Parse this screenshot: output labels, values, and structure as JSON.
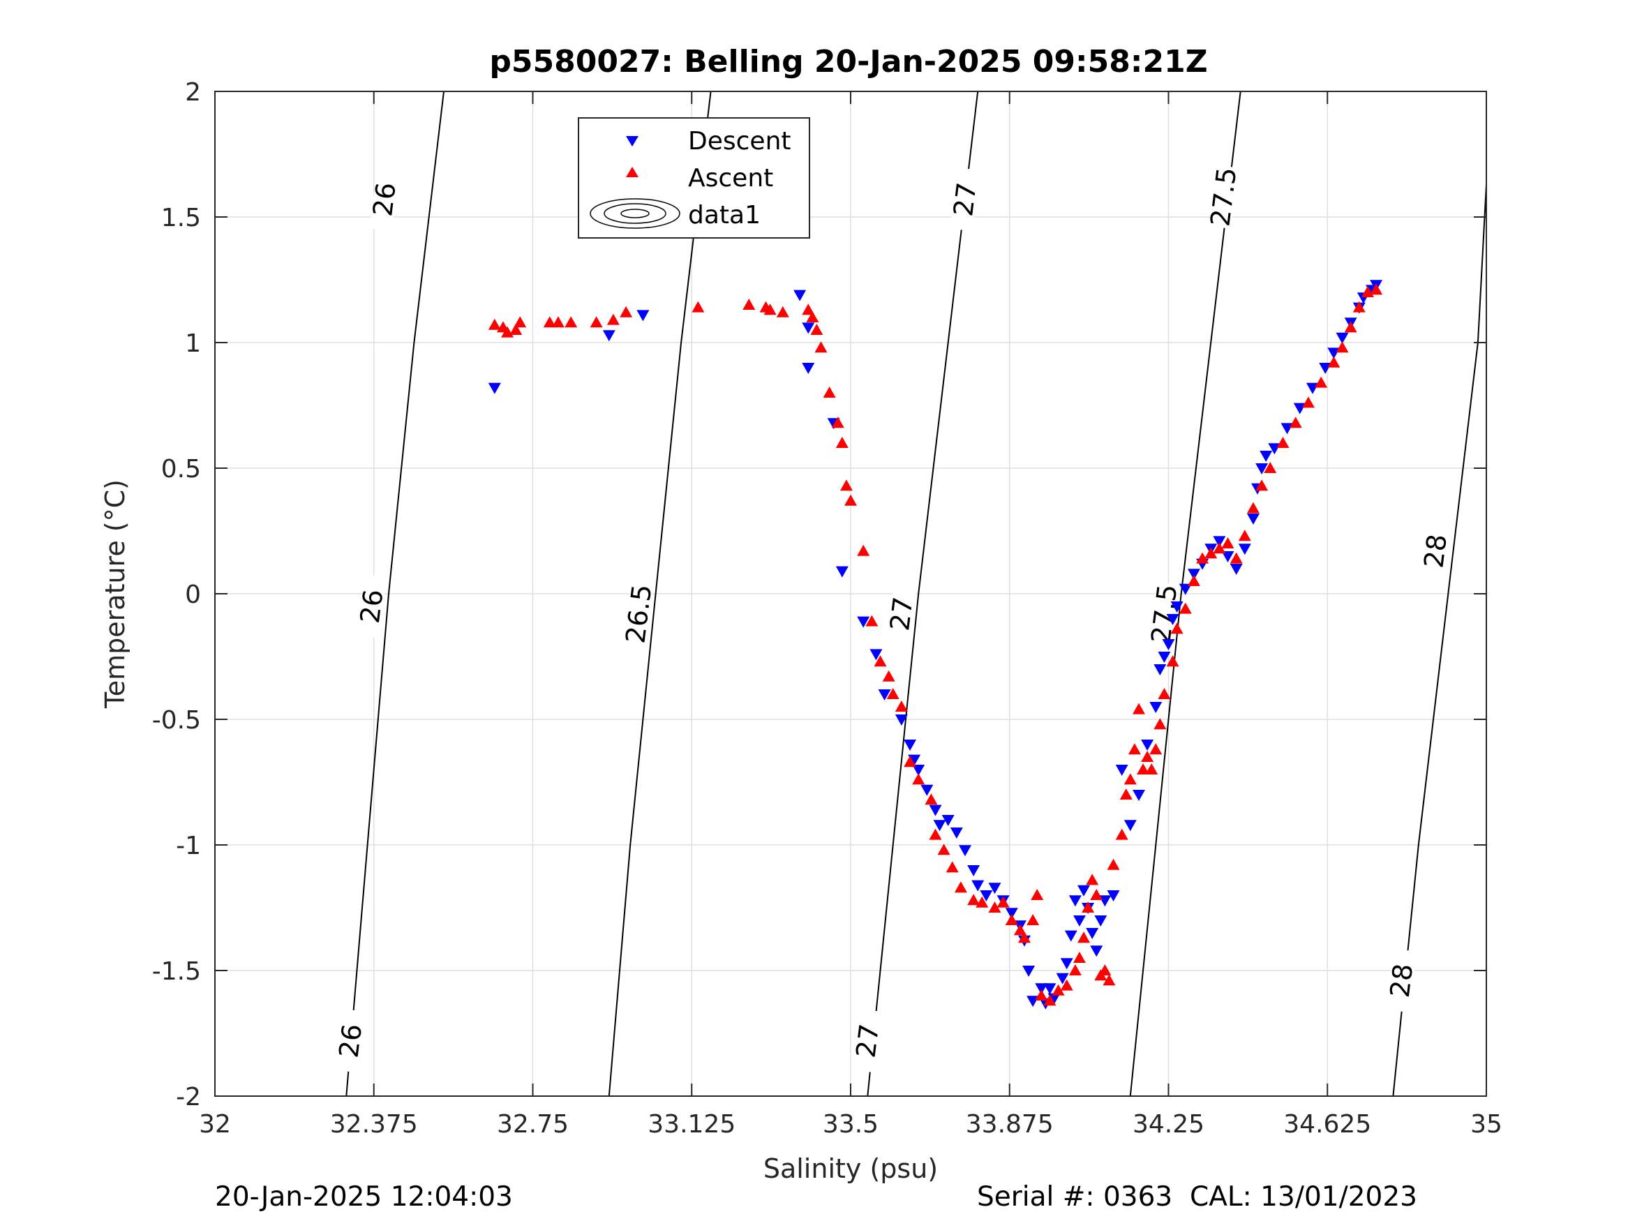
{
  "title": "p5580027: Belling 20-Jan-2025 09:58:21Z",
  "footer": {
    "timestamp": "20-Jan-2025 12:04:03",
    "serial": "Serial #: 0363  CAL: 13/01/2023"
  },
  "colors": {
    "descent": "#0000ff",
    "ascent": "#ff0000",
    "contour": "#000000",
    "grid": "#dfdfdf"
  },
  "chart_data": {
    "type": "scatter",
    "title": "p5580027: Belling 20-Jan-2025 09:58:21Z",
    "xlabel": "Salinity (psu)",
    "ylabel": "Temperature (°C)",
    "xlim": [
      32,
      35
    ],
    "ylim": [
      -2,
      2
    ],
    "xticks": [
      32,
      32.375,
      32.75,
      33.125,
      33.5,
      33.875,
      34.25,
      34.625,
      35
    ],
    "xtick_labels": [
      "32",
      "32.375",
      "32.75",
      "33.125",
      "33.5",
      "33.875",
      "34.25",
      "34.625",
      "35"
    ],
    "yticks": [
      -2,
      -1.5,
      -1,
      -0.5,
      0,
      0.5,
      1,
      1.5,
      2
    ],
    "ytick_labels": [
      "-2",
      "-1.5",
      "-1",
      "-0.5",
      "0",
      "0.5",
      "1",
      "1.5",
      "2"
    ],
    "grid": true,
    "legend": {
      "position": "top-center",
      "entries": [
        "Descent",
        "Ascent",
        "data1"
      ]
    },
    "contours": [
      {
        "level": "26",
        "points": [
          [
            32.31,
            -2
          ],
          [
            32.36,
            -1
          ],
          [
            32.41,
            0
          ],
          [
            32.47,
            1
          ],
          [
            32.54,
            2
          ]
        ]
      },
      {
        "level": "26.5",
        "points": [
          [
            32.93,
            -2
          ],
          [
            32.98,
            -1
          ],
          [
            33.04,
            0
          ],
          [
            33.1,
            1
          ],
          [
            33.17,
            2
          ]
        ]
      },
      {
        "level": "27",
        "points": [
          [
            33.54,
            -2
          ],
          [
            33.6,
            -1
          ],
          [
            33.66,
            0
          ],
          [
            33.73,
            1
          ],
          [
            33.8,
            2
          ]
        ]
      },
      {
        "level": "27.5",
        "points": [
          [
            34.16,
            -2
          ],
          [
            34.22,
            -1
          ],
          [
            34.28,
            0
          ],
          [
            34.35,
            1
          ],
          [
            34.42,
            2
          ]
        ]
      },
      {
        "level": "28",
        "points": [
          [
            34.78,
            -2
          ],
          [
            34.84,
            -1
          ],
          [
            34.91,
            0
          ],
          [
            34.98,
            1
          ],
          [
            35.0,
            1.63
          ]
        ]
      }
    ],
    "contour_labels": [
      {
        "text": "26",
        "s": 32.4,
        "t": 1.57
      },
      {
        "text": "26",
        "s": 32.37,
        "t": -0.05
      },
      {
        "text": "26",
        "s": 32.32,
        "t": -1.78
      },
      {
        "text": "26.5",
        "s": 33.11,
        "t": 1.58
      },
      {
        "text": "26.5",
        "s": 33.0,
        "t": -0.08
      },
      {
        "text": "27",
        "s": 33.77,
        "t": 1.57
      },
      {
        "text": "27",
        "s": 33.62,
        "t": -0.08
      },
      {
        "text": "27",
        "s": 33.54,
        "t": -1.78
      },
      {
        "text": "27.5",
        "s": 34.38,
        "t": 1.58
      },
      {
        "text": "27.5",
        "s": 34.24,
        "t": -0.08
      },
      {
        "text": "28",
        "s": 34.88,
        "t": 0.17
      },
      {
        "text": "28",
        "s": 34.8,
        "t": -1.54
      }
    ],
    "series": [
      {
        "name": "Descent",
        "marker": "triangle-down",
        "points": [
          [
            32.66,
            0.82
          ],
          [
            32.93,
            1.03
          ],
          [
            33.01,
            1.11
          ],
          [
            33.38,
            1.19
          ],
          [
            33.4,
            1.06
          ],
          [
            33.4,
            0.9
          ],
          [
            33.46,
            0.68
          ],
          [
            33.48,
            0.09
          ],
          [
            33.53,
            -0.11
          ],
          [
            33.56,
            -0.24
          ],
          [
            33.58,
            -0.4
          ],
          [
            33.62,
            -0.5
          ],
          [
            33.64,
            -0.6
          ],
          [
            33.65,
            -0.66
          ],
          [
            33.66,
            -0.7
          ],
          [
            33.68,
            -0.78
          ],
          [
            33.7,
            -0.86
          ],
          [
            33.71,
            -0.92
          ],
          [
            33.73,
            -0.9
          ],
          [
            33.75,
            -0.95
          ],
          [
            33.77,
            -1.02
          ],
          [
            33.79,
            -1.1
          ],
          [
            33.8,
            -1.16
          ],
          [
            33.82,
            -1.2
          ],
          [
            33.84,
            -1.17
          ],
          [
            33.86,
            -1.22
          ],
          [
            33.88,
            -1.27
          ],
          [
            33.9,
            -1.32
          ],
          [
            33.91,
            -1.38
          ],
          [
            33.92,
            -1.5
          ],
          [
            33.93,
            -1.62
          ],
          [
            33.95,
            -1.57
          ],
          [
            33.96,
            -1.63
          ],
          [
            33.97,
            -1.57
          ],
          [
            33.98,
            -1.61
          ],
          [
            34.0,
            -1.53
          ],
          [
            34.01,
            -1.47
          ],
          [
            34.02,
            -1.36
          ],
          [
            34.03,
            -1.22
          ],
          [
            34.04,
            -1.3
          ],
          [
            34.05,
            -1.18
          ],
          [
            34.06,
            -1.25
          ],
          [
            34.07,
            -1.35
          ],
          [
            34.08,
            -1.42
          ],
          [
            34.09,
            -1.3
          ],
          [
            34.1,
            -1.22
          ],
          [
            34.12,
            -1.2
          ],
          [
            34.14,
            -0.7
          ],
          [
            34.16,
            -0.92
          ],
          [
            34.18,
            -0.8
          ],
          [
            34.2,
            -0.6
          ],
          [
            34.22,
            -0.45
          ],
          [
            34.23,
            -0.3
          ],
          [
            34.24,
            -0.25
          ],
          [
            34.25,
            -0.2
          ],
          [
            34.26,
            -0.1
          ],
          [
            34.27,
            -0.05
          ],
          [
            34.29,
            0.02
          ],
          [
            34.31,
            0.08
          ],
          [
            34.33,
            0.12
          ],
          [
            34.35,
            0.18
          ],
          [
            34.37,
            0.21
          ],
          [
            34.39,
            0.15
          ],
          [
            34.41,
            0.1
          ],
          [
            34.43,
            0.18
          ],
          [
            34.45,
            0.3
          ],
          [
            34.46,
            0.42
          ],
          [
            34.47,
            0.5
          ],
          [
            34.48,
            0.55
          ],
          [
            34.5,
            0.58
          ],
          [
            34.53,
            0.66
          ],
          [
            34.56,
            0.74
          ],
          [
            34.59,
            0.82
          ],
          [
            34.62,
            0.9
          ],
          [
            34.64,
            0.96
          ],
          [
            34.66,
            1.02
          ],
          [
            34.68,
            1.08
          ],
          [
            34.7,
            1.14
          ],
          [
            34.71,
            1.18
          ],
          [
            34.73,
            1.21
          ],
          [
            34.74,
            1.23
          ]
        ]
      },
      {
        "name": "Ascent",
        "marker": "triangle-up",
        "points": [
          [
            32.66,
            1.07
          ],
          [
            32.68,
            1.06
          ],
          [
            32.69,
            1.04
          ],
          [
            32.71,
            1.05
          ],
          [
            32.72,
            1.08
          ],
          [
            32.79,
            1.08
          ],
          [
            32.81,
            1.08
          ],
          [
            32.84,
            1.08
          ],
          [
            32.9,
            1.08
          ],
          [
            32.94,
            1.09
          ],
          [
            32.97,
            1.12
          ],
          [
            33.14,
            1.14
          ],
          [
            33.26,
            1.15
          ],
          [
            33.3,
            1.14
          ],
          [
            33.31,
            1.13
          ],
          [
            33.34,
            1.12
          ],
          [
            33.4,
            1.13
          ],
          [
            33.41,
            1.1
          ],
          [
            33.42,
            1.05
          ],
          [
            33.43,
            0.98
          ],
          [
            33.45,
            0.8
          ],
          [
            33.47,
            0.68
          ],
          [
            33.48,
            0.6
          ],
          [
            33.49,
            0.43
          ],
          [
            33.5,
            0.37
          ],
          [
            33.53,
            0.17
          ],
          [
            33.55,
            -0.11
          ],
          [
            33.57,
            -0.27
          ],
          [
            33.59,
            -0.33
          ],
          [
            33.6,
            -0.4
          ],
          [
            33.62,
            -0.45
          ],
          [
            33.64,
            -0.67
          ],
          [
            33.66,
            -0.74
          ],
          [
            33.69,
            -0.82
          ],
          [
            33.7,
            -0.96
          ],
          [
            33.72,
            -1.02
          ],
          [
            33.74,
            -1.09
          ],
          [
            33.76,
            -1.17
          ],
          [
            33.79,
            -1.22
          ],
          [
            33.81,
            -1.23
          ],
          [
            33.84,
            -1.25
          ],
          [
            33.86,
            -1.23
          ],
          [
            33.88,
            -1.3
          ],
          [
            33.9,
            -1.34
          ],
          [
            33.91,
            -1.37
          ],
          [
            33.93,
            -1.3
          ],
          [
            33.94,
            -1.2
          ],
          [
            33.95,
            -1.6
          ],
          [
            33.97,
            -1.62
          ],
          [
            33.99,
            -1.58
          ],
          [
            34.01,
            -1.56
          ],
          [
            34.03,
            -1.5
          ],
          [
            34.04,
            -1.45
          ],
          [
            34.05,
            -1.37
          ],
          [
            34.06,
            -1.25
          ],
          [
            34.07,
            -1.14
          ],
          [
            34.08,
            -1.2
          ],
          [
            34.09,
            -1.52
          ],
          [
            34.1,
            -1.5
          ],
          [
            34.11,
            -1.54
          ],
          [
            34.12,
            -1.08
          ],
          [
            34.14,
            -0.96
          ],
          [
            34.15,
            -0.8
          ],
          [
            34.16,
            -0.74
          ],
          [
            34.17,
            -0.62
          ],
          [
            34.18,
            -0.46
          ],
          [
            34.19,
            -0.7
          ],
          [
            34.2,
            -0.65
          ],
          [
            34.21,
            -0.7
          ],
          [
            34.22,
            -0.62
          ],
          [
            34.23,
            -0.52
          ],
          [
            34.24,
            -0.4
          ],
          [
            34.26,
            -0.27
          ],
          [
            34.27,
            -0.14
          ],
          [
            34.29,
            -0.06
          ],
          [
            34.31,
            0.05
          ],
          [
            34.33,
            0.14
          ],
          [
            34.35,
            0.16
          ],
          [
            34.37,
            0.18
          ],
          [
            34.39,
            0.2
          ],
          [
            34.41,
            0.14
          ],
          [
            34.43,
            0.23
          ],
          [
            34.45,
            0.34
          ],
          [
            34.47,
            0.43
          ],
          [
            34.49,
            0.5
          ],
          [
            34.52,
            0.6
          ],
          [
            34.55,
            0.68
          ],
          [
            34.58,
            0.76
          ],
          [
            34.61,
            0.84
          ],
          [
            34.64,
            0.92
          ],
          [
            34.66,
            0.98
          ],
          [
            34.68,
            1.06
          ],
          [
            34.7,
            1.14
          ],
          [
            34.72,
            1.2
          ],
          [
            34.74,
            1.21
          ]
        ]
      }
    ]
  }
}
